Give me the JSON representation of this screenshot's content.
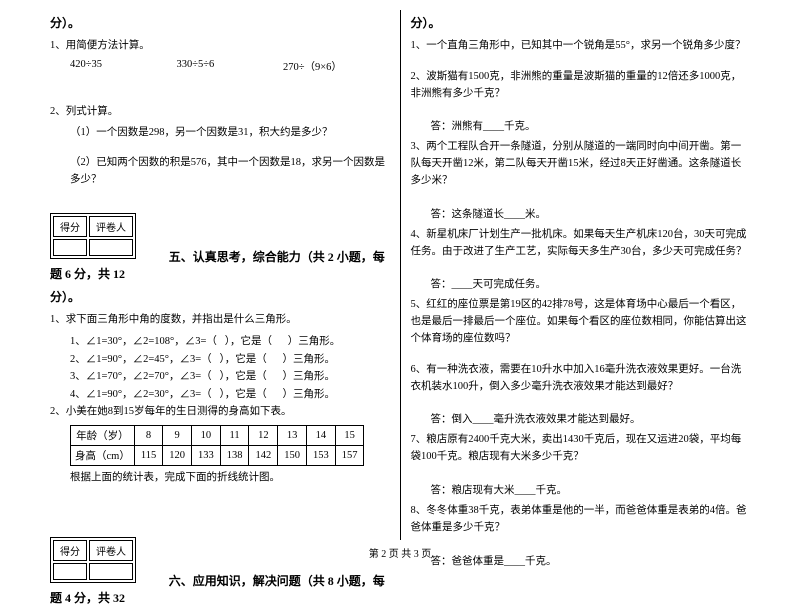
{
  "footer": "第 2 页 共 3 页",
  "left": {
    "top_cont": "分）。",
    "q1": "1、用简便方法计算。",
    "calc": {
      "a": "420÷35",
      "b": "330÷5÷6",
      "c": "270÷（9×6）"
    },
    "q2": "2、列式计算。",
    "q2a": "（1）一个因数是298，另一个因数是31，积大约是多少？",
    "q2b": "（2）已知两个因数的积是576，其中一个因数是18，求另一个因数是多少？",
    "scorebox": {
      "a": "得分",
      "b": "评卷人"
    },
    "sec5": "五、认真思考，综合能力（共 2 小题，每题 6 分，共 12",
    "sec5_cont": "分）。",
    "q5_1": "1、求下面三角形中角的度数，并指出是什么三角形。",
    "tri": [
      "1、∠1=30°，∠2=108°，∠3=（   ），它是（      ）三角形。",
      "2、∠1=90°，∠2=45°，∠3=（   ），它是（      ）三角形。",
      "3、∠1=70°，∠2=70°，∠3=（   ），它是（      ）三角形。",
      "4、∠1=90°，∠2=30°，∠3=（   ），它是（      ）三角形。"
    ],
    "q5_2": "2、小美在她8到15岁每年的生日测得的身高如下表。",
    "table": {
      "headers": [
        "年龄（岁）",
        "8",
        "9",
        "10",
        "11",
        "12",
        "13",
        "14",
        "15"
      ],
      "row": [
        "身高（cm）",
        "115",
        "120",
        "133",
        "138",
        "142",
        "150",
        "153",
        "157"
      ]
    },
    "q5_2b": "根据上面的统计表，完成下面的折线统计图。",
    "sec6": "六、应用知识，解决问题（共 8 小题，每题 4 分，共 32"
  },
  "right": {
    "top_cont": "分）。",
    "q1": "1、一个直角三角形中，已知其中一个锐角是55°，求另一个锐角多少度？",
    "q2": "2、波斯猫有1500克，非洲熊的重量是波斯猫的重量的12倍还多1000克，非洲熊有多少千克？",
    "a2": "答：洲熊有____千克。",
    "q3": "3、两个工程队合开一条隧道，分别从隧道的一端同时向中间开凿。第一队每天开凿12米，第二队每天开凿15米，经过8天正好凿通。这条隧道长多少米？",
    "a3": "答：这条隧道长____米。",
    "q4": "4、新星机床厂计划生产一批机床。如果每天生产机床120台，30天可完成任务。由于改进了生产工艺，实际每天多生产30台，多少天可完成任务？",
    "a4": "答：____天可完成任务。",
    "q5": "5、红红的座位票是第19区的42排78号，这是体育场中心最后一个看区，也是最后一排最后一个座位。如果每个看区的座位数相同，你能估算出这个体育场的座位数吗？",
    "q6": "6、有一种洗衣液，需要在10升水中加入16毫升洗衣液效果更好。一台洗衣机装水100升，倒入多少毫升洗衣液效果才能达到最好？",
    "a6": "答：倒入____毫升洗衣液效果才能达到最好。",
    "q7": "7、粮店原有2400千克大米，卖出1430千克后，现在又运进20袋，平均每袋100千克。粮店现有大米多少千克？",
    "a7": "答：粮店现有大米____千克。",
    "q8": "8、冬冬体重38千克，表弟体重是他的一半，而爸爸体重是表弟的4倍。爸爸体重是多少千克？",
    "a8": "答：爸爸体重是____千克。"
  }
}
